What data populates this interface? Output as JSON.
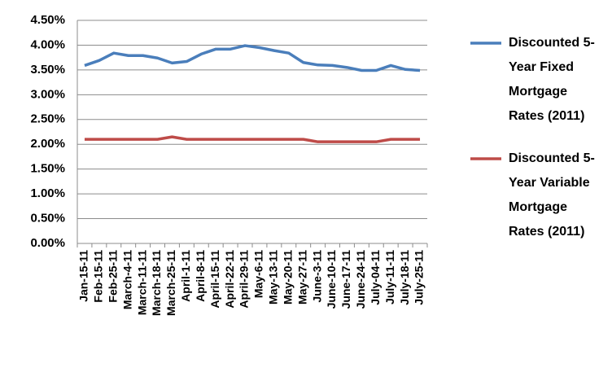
{
  "chart_data": {
    "type": "line",
    "categories": [
      "Jan-15-11",
      "Feb-15-11",
      "Feb-25-11",
      "March-4-11",
      "March-11-11",
      "March-18-11",
      "March-25-11",
      "April-1-11",
      "April-8-11",
      "April-15-11",
      "April-22-11",
      "April-29-11",
      "May-6-11",
      "May-13-11",
      "May-20-11",
      "May-27-11",
      "June-3-11",
      "June-10-11",
      "June-17-11",
      "June-24-11",
      "July-04-11",
      "July-11-11",
      "July-18-11",
      "July-25-11"
    ],
    "series": [
      {
        "name": "Discounted 5-Year Fixed Mortgage Rates (2011)",
        "color": "#4a7ebb",
        "values": [
          3.59,
          3.69,
          3.84,
          3.79,
          3.79,
          3.74,
          3.64,
          3.67,
          3.82,
          3.92,
          3.92,
          3.99,
          3.95,
          3.89,
          3.84,
          3.65,
          3.6,
          3.59,
          3.55,
          3.49,
          3.49,
          3.59,
          3.51,
          3.49
        ]
      },
      {
        "name": "Discounted 5-Year Variable Mortgage Rates (2011)",
        "color": "#be4b48",
        "values": [
          2.1,
          2.1,
          2.1,
          2.1,
          2.1,
          2.1,
          2.15,
          2.1,
          2.1,
          2.1,
          2.1,
          2.1,
          2.1,
          2.1,
          2.1,
          2.1,
          2.05,
          2.05,
          2.05,
          2.05,
          2.05,
          2.1,
          2.1,
          2.1
        ]
      }
    ],
    "ylim": [
      0,
      4.5
    ],
    "yticks": [
      {
        "value": 0,
        "label": "0.00%"
      },
      {
        "value": 0.5,
        "label": "0.50%"
      },
      {
        "value": 1,
        "label": "1.00%"
      },
      {
        "value": 1.5,
        "label": "1.50%"
      },
      {
        "value": 2,
        "label": "2.00%"
      },
      {
        "value": 2.5,
        "label": "2.50%"
      },
      {
        "value": 3,
        "label": "3.00%"
      },
      {
        "value": 3.5,
        "label": "3.50%"
      },
      {
        "value": 4,
        "label": "4.00%"
      },
      {
        "value": 4.5,
        "label": "4.50%"
      }
    ],
    "grid": true,
    "legend": "right"
  }
}
